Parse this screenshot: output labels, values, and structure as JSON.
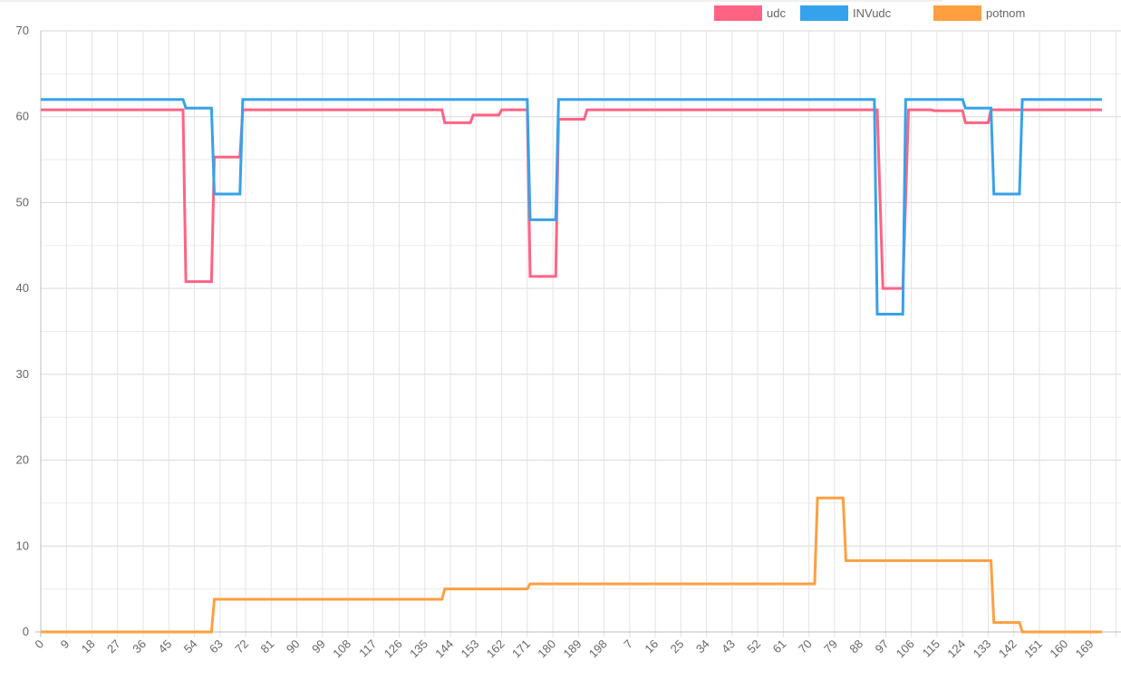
{
  "chart_data": {
    "type": "line",
    "legend": {
      "placement": "top-right"
    },
    "grid": true,
    "ylim": [
      0,
      70
    ],
    "y_ticks": [
      "0",
      "10",
      "20",
      "30",
      "40",
      "50",
      "60",
      "70"
    ],
    "x_tick_labels": [
      "0",
      "9",
      "18",
      "27",
      "36",
      "45",
      "54",
      "63",
      "72",
      "81",
      "90",
      "99",
      "108",
      "117",
      "126",
      "135",
      "144",
      "153",
      "162",
      "171",
      "180",
      "189",
      "198",
      "7",
      "16",
      "25",
      "34",
      "43",
      "52",
      "61",
      "70",
      "79",
      "88",
      "97",
      "106",
      "115",
      "124",
      "133",
      "142",
      "151",
      "160",
      "169"
    ],
    "point_count": 374,
    "series": [
      {
        "name": "udc",
        "color": "#ff6384",
        "segments": [
          [
            0,
            60.8
          ],
          [
            50,
            60.8
          ],
          [
            51,
            40.8
          ],
          [
            60,
            40.8
          ],
          [
            61,
            55.3
          ],
          [
            70,
            55.3
          ],
          [
            71,
            60.8
          ],
          [
            141,
            60.8
          ],
          [
            142,
            59.3
          ],
          [
            151,
            59.3
          ],
          [
            152,
            60.2
          ],
          [
            161,
            60.2
          ],
          [
            162,
            60.8
          ],
          [
            171,
            60.8
          ],
          [
            172,
            41.4
          ],
          [
            181,
            41.4
          ],
          [
            182,
            59.7
          ],
          [
            191,
            59.7
          ],
          [
            192,
            60.8
          ],
          [
            294,
            60.8
          ],
          [
            296,
            40.0
          ],
          [
            303,
            40.0
          ],
          [
            305,
            60.8
          ],
          [
            313,
            60.8
          ],
          [
            314,
            60.7
          ],
          [
            324,
            60.7
          ],
          [
            325,
            59.3
          ],
          [
            333,
            59.3
          ],
          [
            334,
            60.8
          ],
          [
            373,
            60.8
          ]
        ]
      },
      {
        "name": "INVudc",
        "color": "#36a2eb",
        "segments": [
          [
            0,
            62
          ],
          [
            50,
            62
          ],
          [
            51,
            61
          ],
          [
            60,
            61
          ],
          [
            61,
            51
          ],
          [
            70,
            51
          ],
          [
            71,
            62
          ],
          [
            171,
            62
          ],
          [
            172,
            48
          ],
          [
            181,
            48
          ],
          [
            182,
            62
          ],
          [
            293,
            62
          ],
          [
            294,
            37
          ],
          [
            303,
            37
          ],
          [
            304,
            62
          ],
          [
            324,
            62
          ],
          [
            325,
            61
          ],
          [
            334,
            61
          ],
          [
            335,
            51
          ],
          [
            344,
            51
          ],
          [
            345,
            62
          ],
          [
            373,
            62
          ]
        ]
      },
      {
        "name": "potnom",
        "color": "#ff9f40",
        "segments": [
          [
            0,
            0
          ],
          [
            60,
            0
          ],
          [
            61,
            3.8
          ],
          [
            141,
            3.8
          ],
          [
            142,
            5.0
          ],
          [
            171,
            5.0
          ],
          [
            172,
            5.6
          ],
          [
            272,
            5.6
          ],
          [
            273,
            15.6
          ],
          [
            282,
            15.6
          ],
          [
            283,
            8.3
          ],
          [
            334,
            8.3
          ],
          [
            335,
            1.1
          ],
          [
            344,
            1.1
          ],
          [
            345,
            0
          ],
          [
            373,
            0
          ]
        ]
      }
    ]
  }
}
